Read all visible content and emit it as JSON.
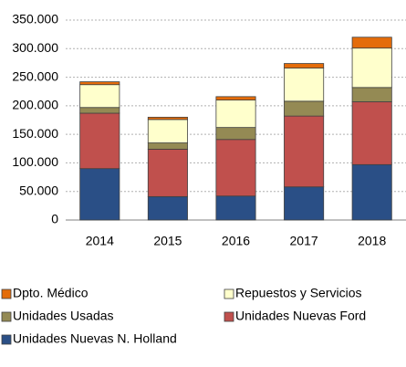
{
  "chart_data": {
    "type": "stacked_bar",
    "categories": [
      "2014",
      "2015",
      "2016",
      "2017",
      "2018"
    ],
    "series": [
      {
        "name": "Unidades Nuevas N. Holland",
        "color": "#2a4f86",
        "values": [
          90000,
          41000,
          42000,
          58000,
          97000
        ]
      },
      {
        "name": "Unidades Nuevas Ford",
        "color": "#c0504d",
        "values": [
          97000,
          83000,
          99000,
          124000,
          110000
        ]
      },
      {
        "name": "Unidades Usadas",
        "color": "#948a54",
        "values": [
          10000,
          11000,
          21000,
          26000,
          25000
        ]
      },
      {
        "name": "Repuestos y Servicios",
        "color": "#ffffcc",
        "values": [
          40000,
          41000,
          48000,
          58000,
          69000
        ]
      },
      {
        "name": "Dpto. Médico",
        "color": "#e46c0a",
        "values": [
          5000,
          4000,
          6000,
          8000,
          19000
        ]
      }
    ],
    "ylim": [
      0,
      350000
    ],
    "yticks": [
      0,
      {
        "value": 50000,
        "label": "50.000"
      },
      {
        "value": 100000,
        "label": "100.000"
      },
      {
        "value": 150000,
        "label": "150.000"
      },
      {
        "value": 200000,
        "label": "200.000"
      },
      {
        "value": 250000,
        "label": "250.000"
      },
      {
        "value": 300000,
        "label": "300.000"
      },
      {
        "value": 350000,
        "label": "350.000"
      }
    ],
    "grid": true
  }
}
